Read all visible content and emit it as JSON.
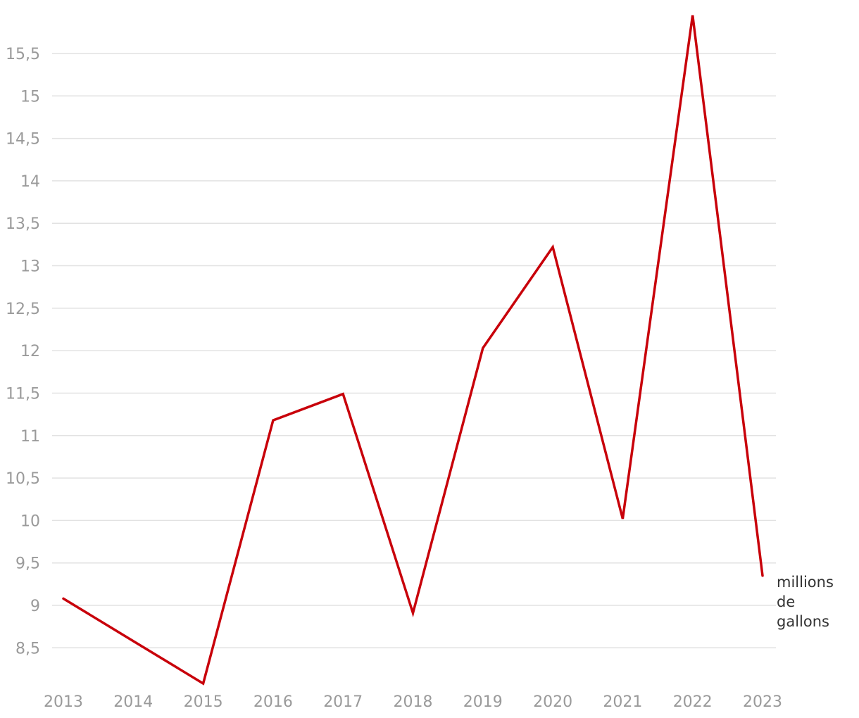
{
  "chart_data": {
    "type": "line",
    "x": [
      "2013",
      "2014",
      "2015",
      "2016",
      "2017",
      "2018",
      "2019",
      "2020",
      "2021",
      "2022",
      "2023"
    ],
    "series": [
      {
        "name": "",
        "label_lines": [
          "millions",
          "de",
          "gallons"
        ],
        "values": [
          9.08,
          8.58,
          8.08,
          11.18,
          11.49,
          8.91,
          12.03,
          13.22,
          10.02,
          15.95,
          9.35
        ],
        "color": "#c8000a"
      }
    ],
    "yticks": [
      8.5,
      9,
      9.5,
      10,
      10.5,
      11,
      11.5,
      12,
      12.5,
      13,
      13.5,
      14,
      14.5,
      15,
      15.5
    ],
    "ytick_labels": [
      "8,5",
      "9",
      "9,5",
      "10",
      "10,5",
      "11",
      "11,5",
      "12",
      "12,5",
      "13",
      "13,5",
      "14",
      "14,5",
      "15",
      "15,5"
    ],
    "ylim": [
      8.0,
      16.0
    ],
    "grid": true,
    "title": "",
    "xlabel": "",
    "ylabel": ""
  }
}
